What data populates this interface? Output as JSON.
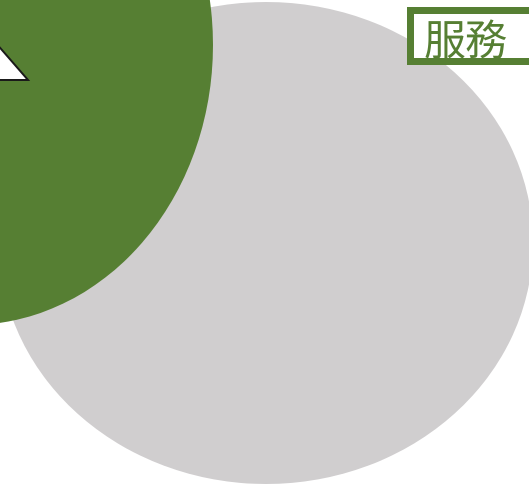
{
  "label": {
    "text": "服務"
  },
  "colors": {
    "green": "#567f33",
    "gray": "#d0cecf",
    "white": "#ffffff",
    "outline": "#1a1a1a"
  }
}
